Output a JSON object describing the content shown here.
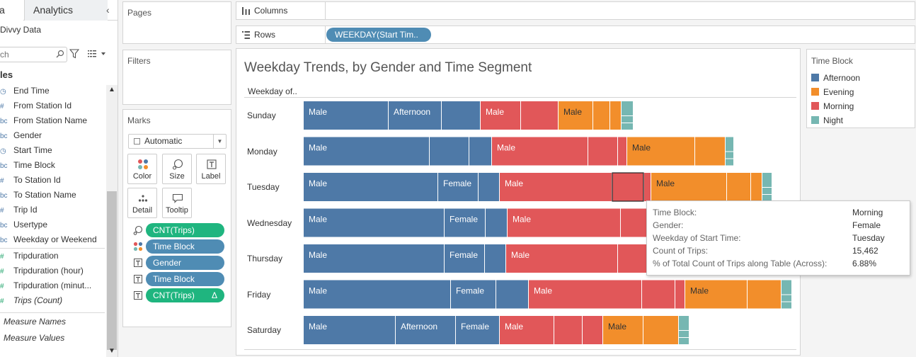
{
  "sidebar": {
    "tab_data": "a",
    "tab_analytics": "Analytics",
    "collapse_glyph": "‹",
    "datasource": "Divvy Data",
    "search_placeholder": "ch",
    "tables_header": "les",
    "dimensions": [
      {
        "icon": "date",
        "label": "End Time"
      },
      {
        "icon": "#",
        "label": "From Station Id"
      },
      {
        "icon": "abc",
        "label": "From Station Name"
      },
      {
        "icon": "abc",
        "label": "Gender"
      },
      {
        "icon": "date",
        "label": "Start Time"
      },
      {
        "icon": "abc",
        "label": "Time Block"
      },
      {
        "icon": "#",
        "label": "To Station Id"
      },
      {
        "icon": "abc",
        "label": "To Station Name"
      },
      {
        "icon": "#",
        "label": "Trip Id"
      },
      {
        "icon": "abc",
        "label": "Usertype"
      },
      {
        "icon": "abc",
        "label": "Weekday or Weekend"
      }
    ],
    "measures": [
      {
        "icon": "#",
        "label": "Tripduration"
      },
      {
        "icon": "#",
        "label": "Tripduration (hour)"
      },
      {
        "icon": "#",
        "label": "Tripduration (minut..."
      },
      {
        "icon": "#",
        "label": "Trips (Count)"
      }
    ],
    "extra": [
      {
        "label": "Measure Names"
      },
      {
        "label": "Measure Values"
      }
    ]
  },
  "cards": {
    "pages": "Pages",
    "filters": "Filters",
    "marks": "Marks",
    "mark_type": "Automatic",
    "buttons": {
      "color": "Color",
      "size": "Size",
      "label": "Label",
      "detail": "Detail",
      "tooltip": "Tooltip"
    },
    "pills": [
      {
        "label": "CNT(Trips)",
        "kind": "size",
        "color": "#1fb57f"
      },
      {
        "label": "Time Block",
        "kind": "color",
        "color": "#4f8cb4"
      },
      {
        "label": "Gender",
        "kind": "label",
        "color": "#4f8cb4"
      },
      {
        "label": "Time Block",
        "kind": "label",
        "color": "#4f8cb4"
      },
      {
        "label": "CNT(Trips)",
        "kind": "label",
        "color": "#1fb57f",
        "delta": "Δ"
      }
    ]
  },
  "shelves": {
    "columns_label": "Columns",
    "rows_label": "Rows",
    "rows_pill": "WEEKDAY(Start Tim.."
  },
  "viz": {
    "title": "Weekday Trends, by Gender and Time Segment",
    "row_header": "Weekday of.."
  },
  "legend": {
    "title": "Time Block",
    "items": [
      {
        "label": "Afternoon",
        "color": "#4e79a7"
      },
      {
        "label": "Evening",
        "color": "#f28e2b"
      },
      {
        "label": "Morning",
        "color": "#e15759"
      },
      {
        "label": "Night",
        "color": "#76b7b2"
      }
    ]
  },
  "tooltip": {
    "rows": [
      {
        "key": "Time Block:",
        "value": "Morning"
      },
      {
        "key": "Gender:",
        "value": "Female"
      },
      {
        "key": "Weekday of Start Time:",
        "value": "Tuesday"
      },
      {
        "key": "Count of Trips:",
        "value": "15,462"
      },
      {
        "key": "% of Total Count of Trips along Table (Across):",
        "value": "6.88%"
      }
    ]
  },
  "chart_data": {
    "type": "bar",
    "stacked": true,
    "orientation": "horizontal",
    "title": "Weekday Trends, by Gender and Time Segment",
    "row_header": "Weekday of..",
    "categories": [
      "Sunday",
      "Monday",
      "Tuesday",
      "Wednesday",
      "Thursday",
      "Friday",
      "Saturday"
    ],
    "unit": "relative count of trips (estimated from segment widths)",
    "rows": [
      {
        "day": "Sunday",
        "segments": [
          {
            "block": "Afternoon",
            "gender": "Male",
            "value": 120,
            "label": "Male"
          },
          {
            "block": "Afternoon",
            "gender": "",
            "value": 75,
            "label": "Afternoon"
          },
          {
            "block": "Afternoon",
            "gender": "",
            "value": 55,
            "label": ""
          },
          {
            "block": "Morning",
            "gender": "Male",
            "value": 57,
            "label": "Male"
          },
          {
            "block": "Morning",
            "gender": "",
            "value": 53,
            "label": ""
          },
          {
            "block": "Evening",
            "gender": "Male",
            "value": 49,
            "label": "Male"
          },
          {
            "block": "Evening",
            "gender": "",
            "value": 24,
            "label": ""
          },
          {
            "block": "Evening",
            "gender": "",
            "value": 16,
            "label": ""
          },
          {
            "block": "Night",
            "gender": "",
            "value": 17,
            "label": ""
          }
        ]
      },
      {
        "day": "Monday",
        "segments": [
          {
            "block": "Afternoon",
            "gender": "Male",
            "value": 178,
            "label": "Male"
          },
          {
            "block": "Afternoon",
            "gender": "",
            "value": 56,
            "label": ""
          },
          {
            "block": "Afternoon",
            "gender": "",
            "value": 32,
            "label": ""
          },
          {
            "block": "Morning",
            "gender": "Male",
            "value": 136,
            "label": "Male"
          },
          {
            "block": "Morning",
            "gender": "",
            "value": 42,
            "label": ""
          },
          {
            "block": "Morning",
            "gender": "",
            "value": 13,
            "label": ""
          },
          {
            "block": "Evening",
            "gender": "Male",
            "value": 96,
            "label": "Male"
          },
          {
            "block": "Evening",
            "gender": "",
            "value": 43,
            "label": ""
          },
          {
            "block": "Night",
            "gender": "",
            "value": 12,
            "label": ""
          }
        ]
      },
      {
        "day": "Tuesday",
        "segments": [
          {
            "block": "Afternoon",
            "gender": "Male",
            "value": 190,
            "label": "Male"
          },
          {
            "block": "Afternoon",
            "gender": "Female",
            "value": 57,
            "label": "Female"
          },
          {
            "block": "Afternoon",
            "gender": "",
            "value": 30,
            "label": ""
          },
          {
            "block": "Morning",
            "gender": "Male",
            "value": 159,
            "label": "Male"
          },
          {
            "block": "Morning",
            "gender": "Female",
            "value": 45,
            "label": "",
            "highlighted": true
          },
          {
            "block": "Morning",
            "gender": "",
            "value": 10,
            "label": ""
          },
          {
            "block": "Evening",
            "gender": "Male",
            "value": 107,
            "label": "Male"
          },
          {
            "block": "Evening",
            "gender": "",
            "value": 34,
            "label": ""
          },
          {
            "block": "Evening",
            "gender": "",
            "value": 16,
            "label": ""
          },
          {
            "block": "Night",
            "gender": "",
            "value": 14,
            "label": ""
          }
        ]
      },
      {
        "day": "Wednesday",
        "segments": [
          {
            "block": "Afternoon",
            "gender": "Male",
            "value": 199,
            "label": "Male"
          },
          {
            "block": "Afternoon",
            "gender": "Female",
            "value": 58,
            "label": "Female"
          },
          {
            "block": "Afternoon",
            "gender": "",
            "value": 31,
            "label": ""
          },
          {
            "block": "Morning",
            "gender": "Male",
            "value": 160,
            "label": "Male"
          },
          {
            "block": "Morning",
            "gender": "",
            "value": 38,
            "label": ""
          }
        ]
      },
      {
        "day": "Thursday",
        "segments": [
          {
            "block": "Afternoon",
            "gender": "Male",
            "value": 199,
            "label": "Male"
          },
          {
            "block": "Afternoon",
            "gender": "Female",
            "value": 57,
            "label": "Female"
          },
          {
            "block": "Afternoon",
            "gender": "",
            "value": 30,
            "label": ""
          },
          {
            "block": "Morning",
            "gender": "Male",
            "value": 158,
            "label": "Male"
          },
          {
            "block": "Morning",
            "gender": "",
            "value": 42,
            "label": ""
          }
        ]
      },
      {
        "day": "Friday",
        "segments": [
          {
            "block": "Afternoon",
            "gender": "Male",
            "value": 208,
            "label": "Male"
          },
          {
            "block": "Afternoon",
            "gender": "Female",
            "value": 64,
            "label": "Female"
          },
          {
            "block": "Afternoon",
            "gender": "",
            "value": 46,
            "label": ""
          },
          {
            "block": "Morning",
            "gender": "Male",
            "value": 160,
            "label": "Male"
          },
          {
            "block": "Morning",
            "gender": "",
            "value": 47,
            "label": ""
          },
          {
            "block": "Morning",
            "gender": "",
            "value": 14,
            "label": ""
          },
          {
            "block": "Evening",
            "gender": "Male",
            "value": 88,
            "label": "Male"
          },
          {
            "block": "Evening",
            "gender": "",
            "value": 48,
            "label": ""
          },
          {
            "block": "Night",
            "gender": "",
            "value": 15,
            "label": ""
          }
        ]
      },
      {
        "day": "Saturday",
        "segments": [
          {
            "block": "Afternoon",
            "gender": "Male",
            "value": 130,
            "label": "Male"
          },
          {
            "block": "Afternoon",
            "gender": "",
            "value": 85,
            "label": "Afternoon"
          },
          {
            "block": "Afternoon",
            "gender": "Female",
            "value": 62,
            "label": "Female"
          },
          {
            "block": "Morning",
            "gender": "Male",
            "value": 77,
            "label": "Male"
          },
          {
            "block": "Morning",
            "gender": "",
            "value": 40,
            "label": ""
          },
          {
            "block": "Morning",
            "gender": "",
            "value": 29,
            "label": ""
          },
          {
            "block": "Evening",
            "gender": "Male",
            "value": 57,
            "label": "Male"
          },
          {
            "block": "Evening",
            "gender": "",
            "value": 50,
            "label": ""
          },
          {
            "block": "Night",
            "gender": "",
            "value": 15,
            "label": ""
          }
        ]
      }
    ],
    "colors": {
      "Afternoon": "#4e79a7",
      "Evening": "#f28e2b",
      "Morning": "#e15759",
      "Night": "#76b7b2"
    },
    "legend": {
      "title": "Time Block",
      "position": "right"
    },
    "grid": false
  }
}
